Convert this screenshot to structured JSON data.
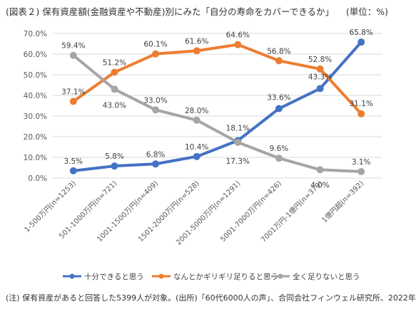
{
  "header": {
    "title": "(図表２) 保有資産額(金融資産や不動産)別にみた「自分の寿命をカバーできるか」",
    "unit": "(単位：%)"
  },
  "footer": {
    "note": "(注) 保有資産があると回答した5399人が対象。(出所)「60代6000人の声」、合同会社フィンウェル研究所、2022年"
  },
  "chart_data": {
    "type": "line",
    "categories": [
      "1-500万円(n=1253)",
      "501-1000万円(n=721)",
      "1001-1500万円(n=409)",
      "1501-2000万円(n=528)",
      "2001-5000万円(n=1291)",
      "5001-7000万円(n=426)",
      "7001万円-1億円(n=379)",
      "1億円超(n=392)"
    ],
    "ylim": [
      0,
      70
    ],
    "yticks": [
      "0.0%",
      "10.0%",
      "20.0%",
      "30.0%",
      "40.0%",
      "50.0%",
      "60.0%",
      "70.0%"
    ],
    "grid": true,
    "legend_position": "bottom",
    "series": [
      {
        "name": "十分できると思う",
        "color": "#4472C4",
        "values": [
          3.5,
          5.8,
          6.8,
          10.4,
          18.1,
          33.6,
          43.3,
          65.8
        ],
        "labels": [
          "3.5%",
          "5.8%",
          "6.8%",
          "10.4%",
          "18.1%",
          "33.6%",
          "43.3%",
          "65.8%"
        ]
      },
      {
        "name": "なんとかギリギリ足りると思う",
        "color": "#ED7D31",
        "values": [
          37.1,
          51.2,
          60.1,
          61.6,
          64.6,
          56.8,
          52.8,
          31.1
        ],
        "labels": [
          "37.1%",
          "51.2%",
          "60.1%",
          "61.6%",
          "64.6%",
          "56.8%",
          "52.8%",
          "31.1%"
        ]
      },
      {
        "name": "全く足りないと思う",
        "color": "#A5A5A5",
        "values": [
          59.4,
          43.0,
          33.0,
          28.0,
          17.3,
          9.6,
          4.0,
          3.1
        ],
        "labels": [
          "59.4%",
          "43.0%",
          "33.0%",
          "28.0%",
          "17.3%",
          "9.6%",
          "4.0%",
          "3.1%"
        ]
      }
    ]
  }
}
